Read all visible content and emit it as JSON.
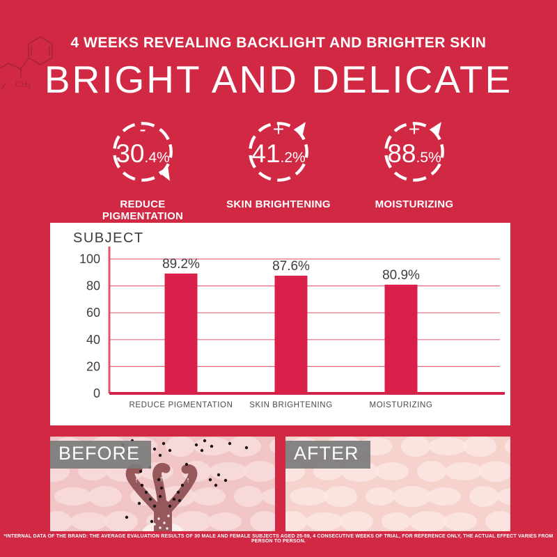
{
  "page": {
    "header": {
      "subtitle": "4 WEEKS REVEALING BACKLIGHT AND BRIGHTER SKIN",
      "title": "BRIGHT AND DELICATE"
    },
    "stats": [
      {
        "sign": "-",
        "value_big": "30",
        "value_small": ".4%",
        "value": "30.4%",
        "direction": "down",
        "label": "REDUCE PIGMENTATION"
      },
      {
        "sign": "+",
        "value_big": "41",
        "value_small": ".2%",
        "value": "41.2%",
        "direction": "up",
        "label": "SKIN BRIGHTENING"
      },
      {
        "sign": "+",
        "value_big": "88",
        "value_small": ".5%",
        "value": "88.5%",
        "direction": "up",
        "label": "MOISTURIZING"
      }
    ],
    "comparison": {
      "before_label": "BEFORE",
      "after_label": "AFTER"
    },
    "footer": {
      "disclaimer": "*INTERNAL DATA OF THE BRAND: THE AVERAGE EVALUATION RESULTS OF 30 MALE AND FEMALE SUBJECTS AGED 25-59, 4 CONSECUTIVE WEEKS OF TRIAL, FOR REFERENCE ONLY, THE ACTUAL EFFECT VARIES FROM PERSON TO PERSON."
    },
    "colors": {
      "background": "#d12944",
      "panel": "#ffffff",
      "accent_text": "#ffffff",
      "label_box": "#7b7b7b"
    }
  },
  "chart_data": {
    "type": "bar",
    "title": "SUBJECT",
    "categories": [
      "REDUCE PIGMENTATION",
      "SKIN BRIGHTENING",
      "MOISTURIZING"
    ],
    "values": [
      89.2,
      87.6,
      80.9
    ],
    "value_labels": [
      "89.2%",
      "87.6%",
      "80.9%"
    ],
    "yticks": [
      0,
      20,
      40,
      60,
      80,
      100
    ],
    "ylim": [
      0,
      100
    ],
    "grid": true,
    "legend": false,
    "bar_color": "#d8204a",
    "grid_color": "#e4697d",
    "axis_color": "#cf2347",
    "text_color": "#3d3d3d"
  }
}
